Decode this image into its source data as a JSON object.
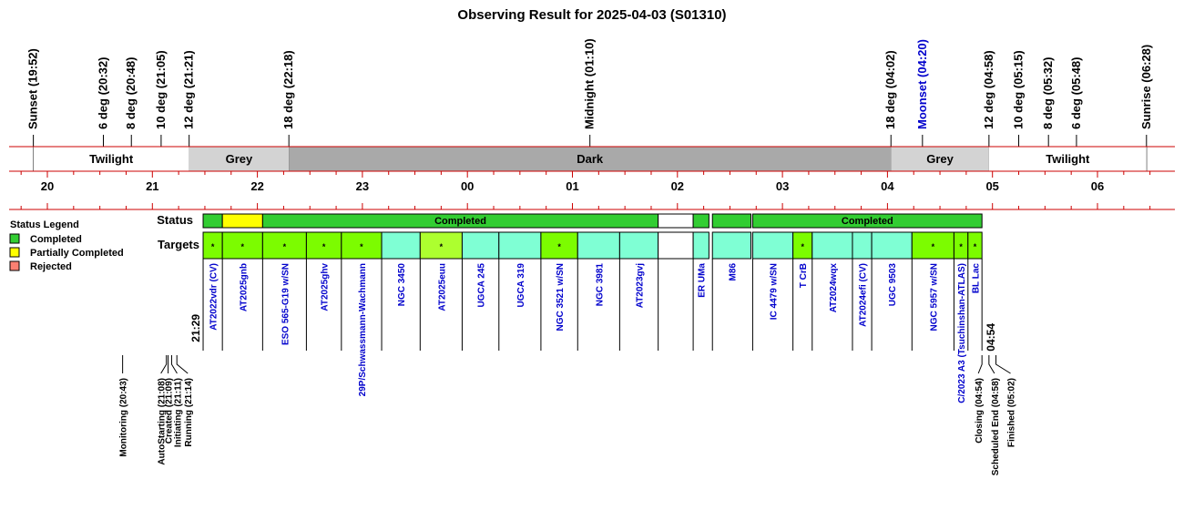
{
  "chart_data": {
    "type": "timeline",
    "title": "Observing Result for 2025-04-03 (S01310)",
    "colors": {
      "completed": "#32cd32",
      "partial": "#ffff00",
      "rejected": "#fa8072",
      "target_completed": "#7cfc00",
      "target_partial": "#adff2f",
      "target_other": "#7fffd4",
      "twilight": "#ffffff",
      "grey": "#d3d3d3",
      "dark": "#a9a9a9",
      "line": "#cc0000",
      "moon": "#0000cc",
      "target_text": "#0000cc"
    },
    "sky_events": [
      {
        "label": "Sunset (19:52)",
        "time": "19:52"
      },
      {
        "label": "6 deg (20:32)",
        "time": "20:32"
      },
      {
        "label": "8 deg (20:48)",
        "time": "20:48"
      },
      {
        "label": "10 deg (21:05)",
        "time": "21:05"
      },
      {
        "label": "12 deg (21:21)",
        "time": "21:21"
      },
      {
        "label": "18 deg (22:18)",
        "time": "22:18"
      },
      {
        "label": "Midnight (01:10)",
        "time": "01:10"
      },
      {
        "label": "18 deg (04:02)",
        "time": "04:02"
      },
      {
        "label": "Moonset (04:20)",
        "time": "04:20",
        "moon": true
      },
      {
        "label": "12 deg (04:58)",
        "time": "04:58"
      },
      {
        "label": "10 deg (05:15)",
        "time": "05:15"
      },
      {
        "label": "8 deg (05:32)",
        "time": "05:32"
      },
      {
        "label": "6 deg (05:48)",
        "time": "05:48"
      },
      {
        "label": "Sunrise (06:28)",
        "time": "06:28"
      }
    ],
    "sky_bands": [
      {
        "label": "Twilight",
        "start": "19:52",
        "end": "21:21",
        "kind": "twilight"
      },
      {
        "label": "Grey",
        "start": "21:21",
        "end": "22:18",
        "kind": "grey"
      },
      {
        "label": "Dark",
        "start": "22:18",
        "end": "04:02",
        "kind": "dark"
      },
      {
        "label": "Grey",
        "start": "04:02",
        "end": "04:58",
        "kind": "grey"
      },
      {
        "label": "Twilight",
        "start": "04:58",
        "end": "06:28",
        "kind": "twilight"
      }
    ],
    "hour_labels": [
      "20",
      "21",
      "22",
      "23",
      "00",
      "01",
      "02",
      "03",
      "04",
      "05",
      "06"
    ],
    "legend": {
      "title": "Status Legend",
      "items": [
        {
          "label": "Completed",
          "color": "#32cd32"
        },
        {
          "label": "Partially Completed",
          "color": "#ffff00"
        },
        {
          "label": "Rejected",
          "color": "#fa8072"
        }
      ]
    },
    "row_labels": {
      "status": "Status",
      "targets": "Targets"
    },
    "status_bars": [
      {
        "start": "21:29",
        "end": "21:40",
        "status": "completed",
        "label": ""
      },
      {
        "start": "21:40",
        "end": "22:03",
        "status": "partial",
        "label": ""
      },
      {
        "start": "22:03",
        "end": "01:49",
        "status": "completed",
        "label": "Completed"
      },
      {
        "start": "01:49",
        "end": "02:09",
        "status": "none",
        "label": ""
      },
      {
        "start": "02:09",
        "end": "02:18",
        "status": "completed",
        "label": ""
      },
      {
        "start": "02:20",
        "end": "02:42",
        "status": "completed",
        "label": ""
      },
      {
        "start": "02:43",
        "end": "04:54",
        "status": "completed",
        "label": "Completed"
      }
    ],
    "targets": [
      {
        "name": "AT2022vdr (CV)",
        "start": "21:29",
        "end": "21:40",
        "fill": "target_completed",
        "mark": "*"
      },
      {
        "name": "AT2025gnb",
        "start": "21:40",
        "end": "22:03",
        "fill": "target_completed",
        "mark": "*"
      },
      {
        "name": "ESO 565-G19 w/SN",
        "start": "22:03",
        "end": "22:28",
        "fill": "target_completed",
        "mark": "*"
      },
      {
        "name": "AT2025ghv",
        "start": "22:28",
        "end": "22:48",
        "fill": "target_completed",
        "mark": "*"
      },
      {
        "name": "29P/Schwassmann-Wachmann",
        "start": "22:48",
        "end": "23:11",
        "fill": "target_completed",
        "mark": "*"
      },
      {
        "name": "NGC 3450",
        "start": "23:11",
        "end": "23:33",
        "fill": "target_other",
        "mark": ""
      },
      {
        "name": "AT2025euu",
        "start": "23:33",
        "end": "23:57",
        "fill": "target_partial",
        "mark": "*"
      },
      {
        "name": "UGCA 245",
        "start": "23:57",
        "end": "00:18",
        "fill": "target_other",
        "mark": ""
      },
      {
        "name": "UGCA 319",
        "start": "00:18",
        "end": "00:42",
        "fill": "target_other",
        "mark": ""
      },
      {
        "name": "NGC 3521 w/SN",
        "start": "00:42",
        "end": "01:03",
        "fill": "target_completed",
        "mark": "*"
      },
      {
        "name": "NGC 3981",
        "start": "01:03",
        "end": "01:27",
        "fill": "target_other",
        "mark": ""
      },
      {
        "name": "AT2023gvj",
        "start": "01:27",
        "end": "01:49",
        "fill": "target_other",
        "mark": ""
      },
      {
        "name": "",
        "start": "01:49",
        "end": "02:09",
        "fill": "none",
        "mark": ""
      },
      {
        "name": "ER UMa",
        "start": "02:09",
        "end": "02:18",
        "fill": "target_other",
        "mark": ""
      },
      {
        "name": "M86",
        "start": "02:20",
        "end": "02:42",
        "fill": "target_other",
        "mark": ""
      },
      {
        "name": "IC 4479 w/SN",
        "start": "02:43",
        "end": "03:06",
        "fill": "target_other",
        "mark": ""
      },
      {
        "name": "T CrB",
        "start": "03:06",
        "end": "03:17",
        "fill": "target_completed",
        "mark": "*"
      },
      {
        "name": "AT2024wqx",
        "start": "03:17",
        "end": "03:40",
        "fill": "target_other",
        "mark": ""
      },
      {
        "name": "AT2024efi (CV)",
        "start": "03:40",
        "end": "03:51",
        "fill": "target_other",
        "mark": ""
      },
      {
        "name": "UGC 9503",
        "start": "03:51",
        "end": "04:14",
        "fill": "target_other",
        "mark": ""
      },
      {
        "name": "NGC 5957 w/SN",
        "start": "04:14",
        "end": "04:38",
        "fill": "target_completed",
        "mark": "*"
      },
      {
        "name": "C/2023 A3 (Tsuchinshan-ATLAS)",
        "start": "04:38",
        "end": "04:46",
        "fill": "target_completed",
        "mark": "*"
      },
      {
        "name": "BL Lac",
        "start": "04:46",
        "end": "04:54",
        "fill": "target_completed",
        "mark": "*"
      }
    ],
    "start_label": {
      "text": "21:29",
      "time": "21:29"
    },
    "end_label": {
      "text": "04:54",
      "time": "04:54"
    },
    "events": [
      {
        "label": "Monitoring (20:43)",
        "time": "20:43"
      },
      {
        "label": "AutoStarting (21:08)",
        "time": "21:08"
      },
      {
        "label": "Created (21:09)",
        "time": "21:09"
      },
      {
        "label": "Initiating (21:11)",
        "time": "21:11"
      },
      {
        "label": "Running (21:14)",
        "time": "21:14"
      },
      {
        "label": "Closing (04:54)",
        "time": "04:54"
      },
      {
        "label": "Scheduled End (04:58)",
        "time": "04:58"
      },
      {
        "label": "Finished (05:02)",
        "time": "05:02"
      }
    ]
  }
}
